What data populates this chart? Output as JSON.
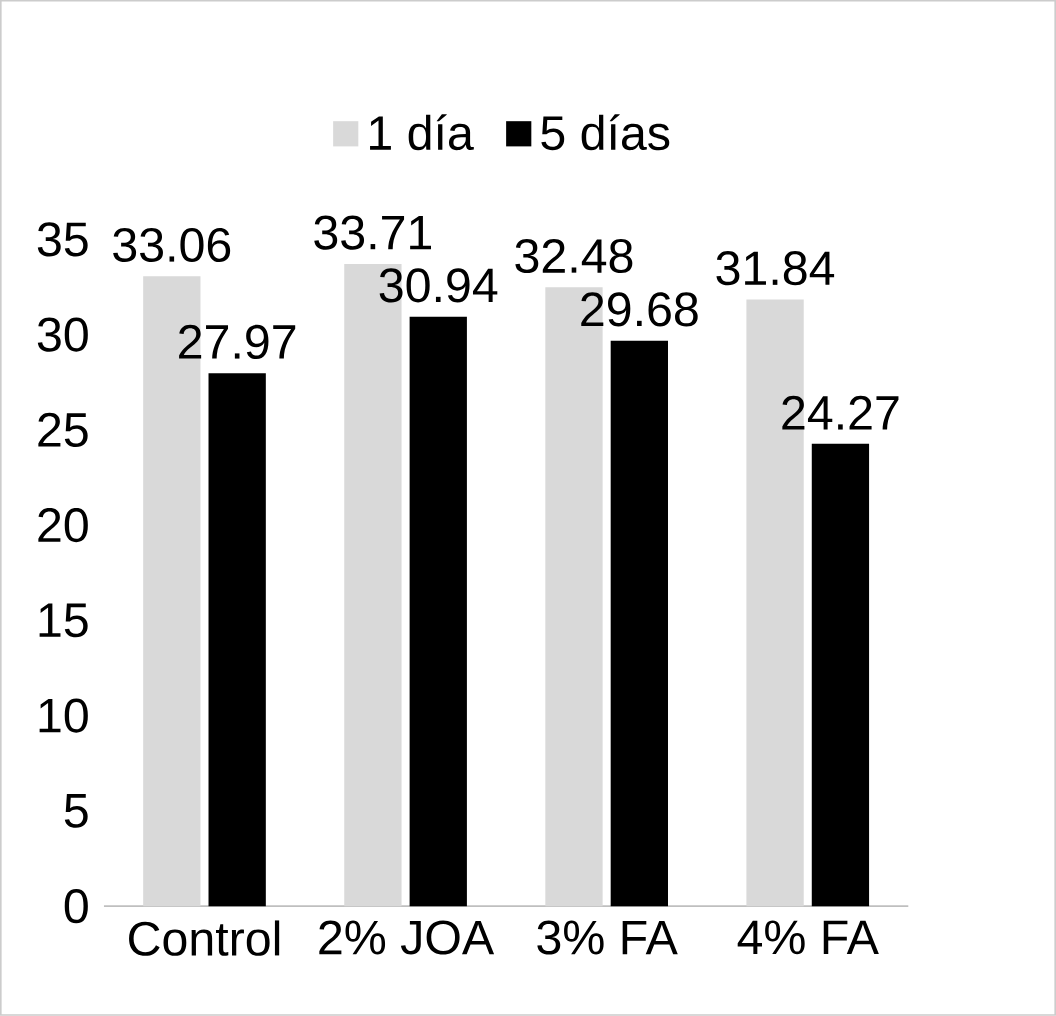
{
  "chart_data": {
    "type": "bar",
    "categories": [
      "Control",
      "2% JOA",
      "3% FA",
      "4% FA"
    ],
    "series": [
      {
        "name": "1 día",
        "color": "#d9d9d9",
        "values": [
          33.06,
          33.71,
          32.48,
          31.84
        ]
      },
      {
        "name": "5 días",
        "color": "#000000",
        "values": [
          27.97,
          30.94,
          29.68,
          24.27
        ]
      }
    ],
    "ylim": [
      0,
      35
    ],
    "yticks": [
      0,
      5,
      10,
      15,
      20,
      25,
      30,
      35
    ],
    "data_labels": true,
    "legend": "top",
    "grid": false
  }
}
